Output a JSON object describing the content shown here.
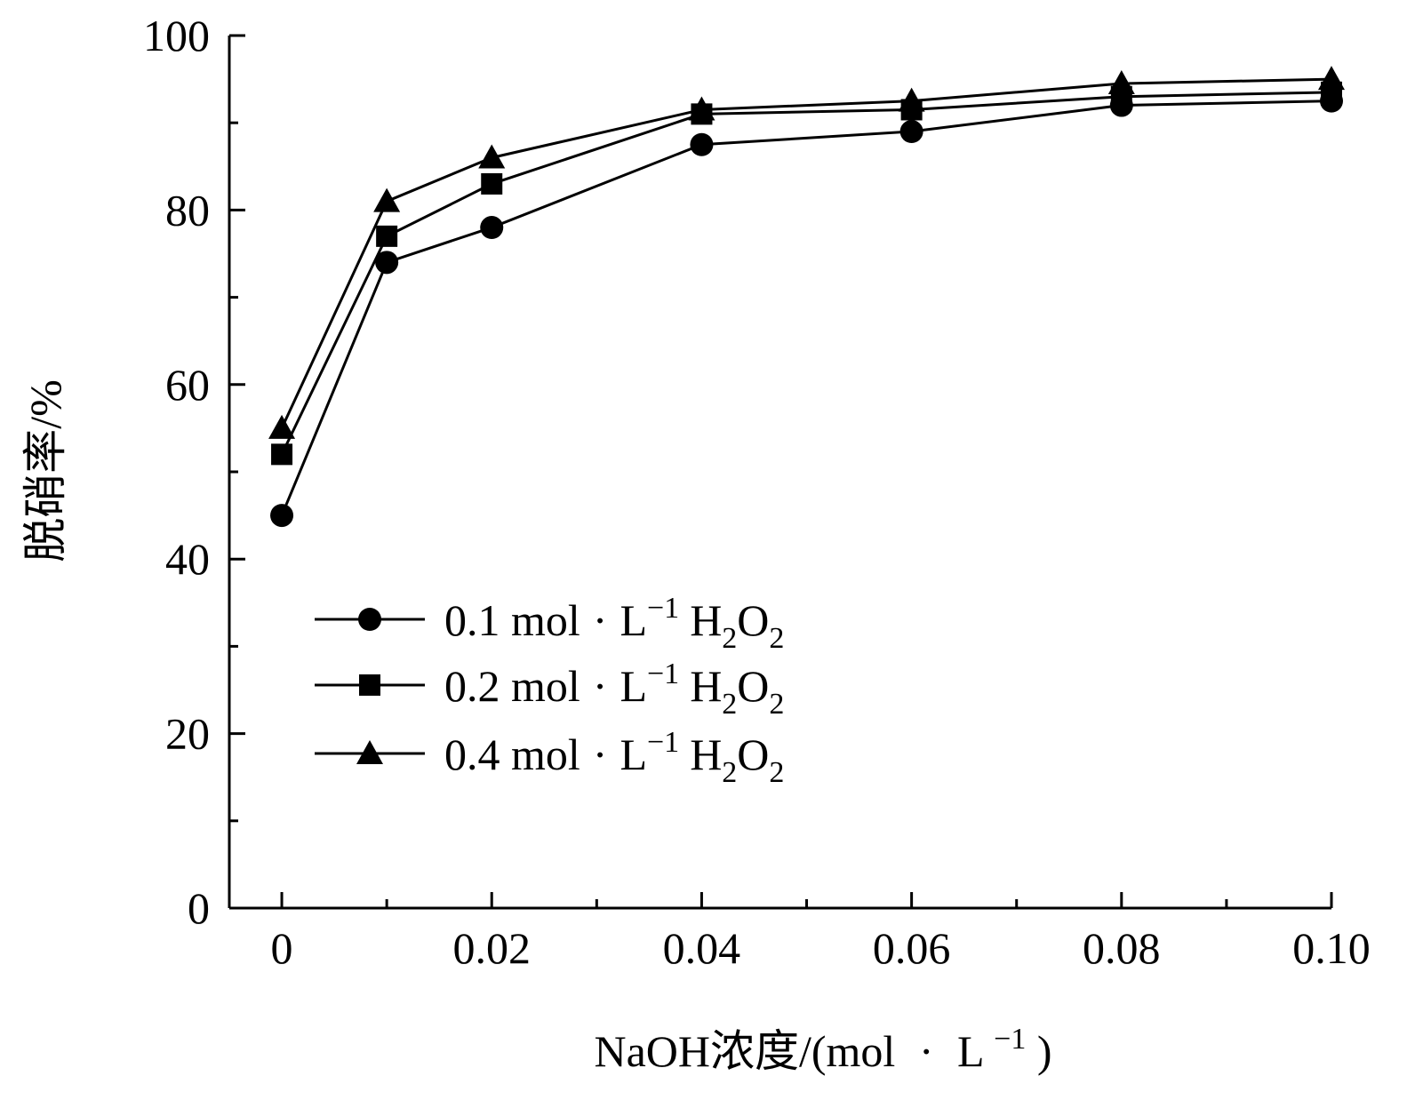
{
  "chart_data": {
    "type": "line",
    "xlabel": {
      "main": "NaOH浓度/(mol",
      "dot": "·",
      "unit": "L",
      "sup": "−1",
      "close": ")"
    },
    "ylabel": "脱硝率/%",
    "xlim": [
      -0.005,
      0.1
    ],
    "ylim": [
      0,
      100
    ],
    "x_ticks": [
      0,
      0.02,
      0.04,
      0.06,
      0.08,
      0.1
    ],
    "x_tick_labels": [
      "0",
      "0.02",
      "0.04",
      "0.06",
      "0.08",
      "0.10"
    ],
    "x_minor_ticks": [
      0.01,
      0.03,
      0.05,
      0.07,
      0.09
    ],
    "y_ticks": [
      0,
      20,
      40,
      60,
      80,
      100
    ],
    "y_tick_labels": [
      "0",
      "20",
      "40",
      "60",
      "80",
      "100"
    ],
    "y_minor_ticks": [
      10,
      30,
      50,
      70,
      90
    ],
    "grid": false,
    "legend_position": "center-left",
    "x": [
      0,
      0.01,
      0.02,
      0.04,
      0.06,
      0.08,
      0.1
    ],
    "series": [
      {
        "name": "0.1 mol · L−1 H2O2",
        "label": {
          "conc": "0.1 mol",
          "dot": "·",
          "unit": "L",
          "sup": "−1",
          "h": "H",
          "sub1": "2",
          "o": "O",
          "sub2": "2"
        },
        "marker": "circle",
        "values": [
          45,
          74,
          78,
          87.5,
          89,
          92,
          92.5
        ]
      },
      {
        "name": "0.2 mol · L−1 H2O2",
        "label": {
          "conc": "0.2 mol",
          "dot": "·",
          "unit": "L",
          "sup": "−1",
          "h": "H",
          "sub1": "2",
          "o": "O",
          "sub2": "2"
        },
        "marker": "square",
        "values": [
          52,
          77,
          83,
          91,
          91.5,
          93,
          93.5
        ]
      },
      {
        "name": "0.4 mol · L−1 H2O2",
        "label": {
          "conc": "0.4 mol",
          "dot": "·",
          "unit": "L",
          "sup": "−1",
          "h": "H",
          "sub1": "2",
          "o": "O",
          "sub2": "2"
        },
        "marker": "triangle",
        "values": [
          55,
          81,
          86,
          91.5,
          92.5,
          94.5,
          95
        ]
      }
    ],
    "colors": {
      "line": "#000000",
      "marker": "#000000",
      "background": "#ffffff"
    }
  }
}
